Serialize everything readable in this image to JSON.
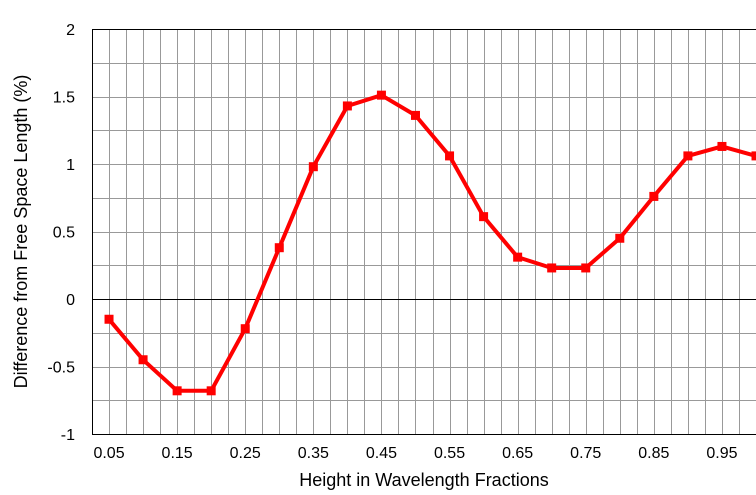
{
  "chart_data": {
    "type": "line",
    "title": "",
    "xlabel": "Height in Wavelength Fractions",
    "ylabel": "Difference from Free Space Length (%)",
    "xlim": [
      0.025,
      1.0
    ],
    "ylim": [
      -1,
      2
    ],
    "grid": true,
    "x_ticks": [
      "0.05",
      "0.15",
      "0.25",
      "0.35",
      "0.45",
      "0.55",
      "0.65",
      "0.75",
      "0.85",
      "0.95"
    ],
    "y_ticks": [
      "2",
      "1.5",
      "1",
      "0.5",
      "0",
      "-0.5",
      "-1"
    ],
    "series": [
      {
        "color": "#ff0000",
        "marker": "square",
        "x": [
          0.05,
          0.1,
          0.15,
          0.2,
          0.25,
          0.3,
          0.35,
          0.4,
          0.45,
          0.5,
          0.55,
          0.6,
          0.65,
          0.7,
          0.75,
          0.8,
          0.85,
          0.9,
          0.95,
          1.0
        ],
        "y": [
          -0.15,
          -0.45,
          -0.68,
          -0.68,
          -0.22,
          0.38,
          0.98,
          1.43,
          1.51,
          1.36,
          1.06,
          0.61,
          0.31,
          0.23,
          0.23,
          0.45,
          0.76,
          1.06,
          1.13,
          1.06
        ]
      }
    ]
  }
}
